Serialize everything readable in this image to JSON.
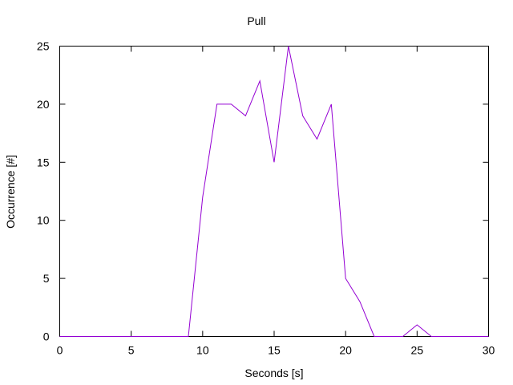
{
  "chart_data": {
    "type": "line",
    "title": "Pull",
    "xlabel": "Seconds [s]",
    "ylabel": "Occurrence [#]",
    "xlim": [
      0,
      30
    ],
    "ylim": [
      0,
      25
    ],
    "xticks": [
      0,
      5,
      10,
      15,
      20,
      25,
      30
    ],
    "yticks": [
      0,
      5,
      10,
      15,
      20,
      25
    ],
    "grid": false,
    "legend": "none",
    "series": [
      {
        "color": "#9400d3",
        "x": [
          0,
          1,
          2,
          3,
          4,
          5,
          6,
          7,
          8,
          9,
          10,
          11,
          12,
          13,
          14,
          15,
          16,
          17,
          18,
          19,
          20,
          21,
          22,
          23,
          24,
          25,
          26,
          27,
          28,
          29,
          30
        ],
        "y": [
          0,
          0,
          0,
          0,
          0,
          0,
          0,
          0,
          0,
          0,
          12,
          20,
          20,
          19,
          22,
          15,
          25,
          19,
          17,
          20,
          5,
          3,
          0,
          0,
          0,
          1,
          0,
          0,
          0,
          0,
          0
        ]
      }
    ]
  }
}
